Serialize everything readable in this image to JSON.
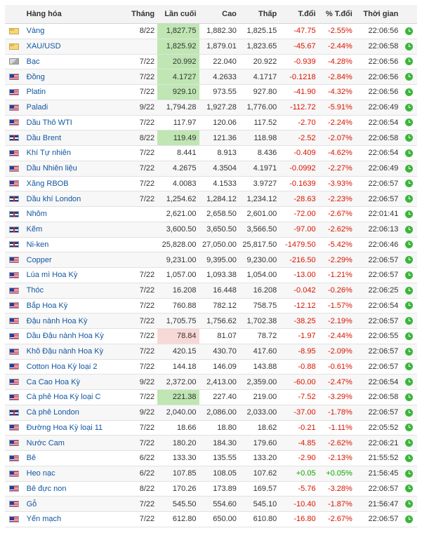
{
  "headers": {
    "name": "Hàng hóa",
    "month": "Tháng",
    "last": "Lần cuối",
    "high": "Cao",
    "low": "Thấp",
    "change": "T.đổi",
    "change_pct": "% T.đổi",
    "time": "Thời gian"
  },
  "colors": {
    "link": "#1256a0",
    "negative": "#d91400",
    "positive": "#0ea600",
    "highlight_up": "#bfe6b3",
    "highlight_down": "#f8d8d6",
    "clock": "#3db53d"
  },
  "rows": [
    {
      "flag": "gold-flag-icon",
      "name": "Vàng",
      "month": "8/22",
      "last": "1,827.75",
      "high": "1,882.30",
      "low": "1,825.15",
      "change": "-47.75",
      "change_pct": "-2.55%",
      "time": "22:06:56",
      "highlight": "green"
    },
    {
      "flag": "gold-flag-icon",
      "name": "XAU/USD",
      "month": "",
      "last": "1,825.92",
      "high": "1,879.01",
      "low": "1,823.65",
      "change": "-45.67",
      "change_pct": "-2.44%",
      "time": "22:06:58",
      "highlight": "green"
    },
    {
      "flag": "grey-flag-icon",
      "name": "Bạc",
      "month": "7/22",
      "last": "20.992",
      "high": "22.040",
      "low": "20.922",
      "change": "-0.939",
      "change_pct": "-4.28%",
      "time": "22:06:56",
      "highlight": "green"
    },
    {
      "flag": "us-flag-icon",
      "name": "Đồng",
      "month": "7/22",
      "last": "4.1727",
      "high": "4.2633",
      "low": "4.1717",
      "change": "-0.1218",
      "change_pct": "-2.84%",
      "time": "22:06:56",
      "highlight": "green"
    },
    {
      "flag": "us-flag-icon",
      "name": "Platin",
      "month": "7/22",
      "last": "929.10",
      "high": "973.55",
      "low": "927.80",
      "change": "-41.90",
      "change_pct": "-4.32%",
      "time": "22:06:56",
      "highlight": "green"
    },
    {
      "flag": "us-flag-icon",
      "name": "Paladi",
      "month": "9/22",
      "last": "1,794.28",
      "high": "1,927.28",
      "low": "1,776.00",
      "change": "-112.72",
      "change_pct": "-5.91%",
      "time": "22:06:49",
      "highlight": ""
    },
    {
      "flag": "us-flag-icon",
      "name": "Dầu Thô WTI",
      "month": "7/22",
      "last": "117.97",
      "high": "120.06",
      "low": "117.52",
      "change": "-2.70",
      "change_pct": "-2.24%",
      "time": "22:06:54",
      "highlight": ""
    },
    {
      "flag": "gb-flag-icon",
      "name": "Dầu Brent",
      "month": "8/22",
      "last": "119.49",
      "high": "121.36",
      "low": "118.98",
      "change": "-2.52",
      "change_pct": "-2.07%",
      "time": "22:06:58",
      "highlight": "green"
    },
    {
      "flag": "us-flag-icon",
      "name": "Khí Tự nhiên",
      "month": "7/22",
      "last": "8.441",
      "high": "8.913",
      "low": "8.436",
      "change": "-0.409",
      "change_pct": "-4.62%",
      "time": "22:06:54",
      "highlight": ""
    },
    {
      "flag": "us-flag-icon",
      "name": "Dầu Nhiên liệu",
      "month": "7/22",
      "last": "4.2675",
      "high": "4.3504",
      "low": "4.1971",
      "change": "-0.0992",
      "change_pct": "-2.27%",
      "time": "22:06:49",
      "highlight": ""
    },
    {
      "flag": "us-flag-icon",
      "name": "Xăng RBOB",
      "month": "7/22",
      "last": "4.0083",
      "high": "4.1533",
      "low": "3.9727",
      "change": "-0.1639",
      "change_pct": "-3.93%",
      "time": "22:06:57",
      "highlight": ""
    },
    {
      "flag": "gb-flag-icon",
      "name": "Dầu khí London",
      "month": "7/22",
      "last": "1,254.62",
      "high": "1,284.12",
      "low": "1,234.12",
      "change": "-28.63",
      "change_pct": "-2.23%",
      "time": "22:06:57",
      "highlight": ""
    },
    {
      "flag": "gb-flag-icon",
      "name": "Nhôm",
      "month": "",
      "last": "2,621.00",
      "high": "2,658.50",
      "low": "2,601.00",
      "change": "-72.00",
      "change_pct": "-2.67%",
      "time": "22:01:41",
      "highlight": ""
    },
    {
      "flag": "gb-flag-icon",
      "name": "Kẽm",
      "month": "",
      "last": "3,600.50",
      "high": "3,650.50",
      "low": "3,566.50",
      "change": "-97.00",
      "change_pct": "-2.62%",
      "time": "22:06:13",
      "highlight": ""
    },
    {
      "flag": "gb-flag-icon",
      "name": "Ni-ken",
      "month": "",
      "last": "25,828.00",
      "high": "27,050.00",
      "low": "25,817.50",
      "change": "-1479.50",
      "change_pct": "-5.42%",
      "time": "22:06:46",
      "highlight": ""
    },
    {
      "flag": "us-flag-icon",
      "name": "Copper",
      "month": "",
      "last": "9,231.00",
      "high": "9,395.00",
      "low": "9,230.00",
      "change": "-216.50",
      "change_pct": "-2.29%",
      "time": "22:06:57",
      "highlight": ""
    },
    {
      "flag": "us-flag-icon",
      "name": "Lúa mì Hoa Kỳ",
      "month": "7/22",
      "last": "1,057.00",
      "high": "1,093.38",
      "low": "1,054.00",
      "change": "-13.00",
      "change_pct": "-1.21%",
      "time": "22:06:57",
      "highlight": ""
    },
    {
      "flag": "us-flag-icon",
      "name": "Thóc",
      "month": "7/22",
      "last": "16.208",
      "high": "16.448",
      "low": "16.208",
      "change": "-0.042",
      "change_pct": "-0.26%",
      "time": "22:06:25",
      "highlight": ""
    },
    {
      "flag": "us-flag-icon",
      "name": "Bắp Hoa Kỳ",
      "month": "7/22",
      "last": "760.88",
      "high": "782.12",
      "low": "758.75",
      "change": "-12.12",
      "change_pct": "-1.57%",
      "time": "22:06:54",
      "highlight": ""
    },
    {
      "flag": "us-flag-icon",
      "name": "Đậu nành Hoa Kỳ",
      "month": "7/22",
      "last": "1,705.75",
      "high": "1,756.62",
      "low": "1,702.38",
      "change": "-38.25",
      "change_pct": "-2.19%",
      "time": "22:06:57",
      "highlight": ""
    },
    {
      "flag": "us-flag-icon",
      "name": "Dầu Đậu nành Hoa Kỳ",
      "month": "7/22",
      "last": "78.84",
      "high": "81.07",
      "low": "78.72",
      "change": "-1.97",
      "change_pct": "-2.44%",
      "time": "22:06:55",
      "highlight": "red"
    },
    {
      "flag": "us-flag-icon",
      "name": "Khô Đậu nành Hoa Kỳ",
      "month": "7/22",
      "last": "420.15",
      "high": "430.70",
      "low": "417.60",
      "change": "-8.95",
      "change_pct": "-2.09%",
      "time": "22:06:57",
      "highlight": ""
    },
    {
      "flag": "us-flag-icon",
      "name": "Cotton Hoa Kỳ loại 2",
      "month": "7/22",
      "last": "144.18",
      "high": "146.09",
      "low": "143.88",
      "change": "-0.88",
      "change_pct": "-0.61%",
      "time": "22:06:57",
      "highlight": ""
    },
    {
      "flag": "us-flag-icon",
      "name": "Ca Cao Hoa Kỳ",
      "month": "9/22",
      "last": "2,372.00",
      "high": "2,413.00",
      "low": "2,359.00",
      "change": "-60.00",
      "change_pct": "-2.47%",
      "time": "22:06:54",
      "highlight": ""
    },
    {
      "flag": "us-flag-icon",
      "name": "Cà phê Hoa Kỳ loại C",
      "month": "7/22",
      "last": "221.38",
      "high": "227.40",
      "low": "219.00",
      "change": "-7.52",
      "change_pct": "-3.29%",
      "time": "22:06:58",
      "highlight": "green"
    },
    {
      "flag": "gb-flag-icon",
      "name": "Cà phê London",
      "month": "9/22",
      "last": "2,040.00",
      "high": "2,086.00",
      "low": "2,033.00",
      "change": "-37.00",
      "change_pct": "-1.78%",
      "time": "22:06:57",
      "highlight": ""
    },
    {
      "flag": "us-flag-icon",
      "name": "Đường Hoa Kỳ loại 11",
      "month": "7/22",
      "last": "18.66",
      "high": "18.80",
      "low": "18.62",
      "change": "-0.21",
      "change_pct": "-1.11%",
      "time": "22:05:52",
      "highlight": ""
    },
    {
      "flag": "us-flag-icon",
      "name": "Nước Cam",
      "month": "7/22",
      "last": "180.20",
      "high": "184.30",
      "low": "179.60",
      "change": "-4.85",
      "change_pct": "-2.62%",
      "time": "22:06:21",
      "highlight": ""
    },
    {
      "flag": "us-flag-icon",
      "name": "Bê",
      "month": "6/22",
      "last": "133.30",
      "high": "135.55",
      "low": "133.20",
      "change": "-2.90",
      "change_pct": "-2.13%",
      "time": "21:55:52",
      "highlight": ""
    },
    {
      "flag": "us-flag-icon",
      "name": "Heo nạc",
      "month": "6/22",
      "last": "107.85",
      "high": "108.05",
      "low": "107.62",
      "change": "+0.05",
      "change_pct": "+0.05%",
      "time": "21:56:45",
      "highlight": ""
    },
    {
      "flag": "us-flag-icon",
      "name": "Bê đực non",
      "month": "8/22",
      "last": "170.26",
      "high": "173.89",
      "low": "169.57",
      "change": "-5.76",
      "change_pct": "-3.28%",
      "time": "22:06:57",
      "highlight": ""
    },
    {
      "flag": "us-flag-icon",
      "name": "Gỗ",
      "month": "7/22",
      "last": "545.50",
      "high": "554.60",
      "low": "545.10",
      "change": "-10.40",
      "change_pct": "-1.87%",
      "time": "21:56:47",
      "highlight": ""
    },
    {
      "flag": "us-flag-icon",
      "name": "Yến mạch",
      "month": "7/22",
      "last": "612.80",
      "high": "650.00",
      "low": "610.80",
      "change": "-16.80",
      "change_pct": "-2.67%",
      "time": "22:06:57",
      "highlight": ""
    }
  ]
}
